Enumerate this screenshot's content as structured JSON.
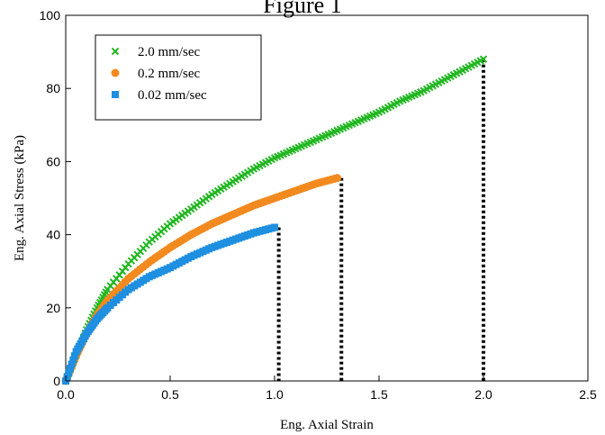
{
  "chart_data": {
    "type": "scatter",
    "title": "Figure 1",
    "xlabel": "Eng. Axial Strain",
    "ylabel": "Eng. Axial Stress (kPa)",
    "xlim": [
      0,
      2.5
    ],
    "ylim": [
      0,
      100
    ],
    "xticks": [
      0,
      0.5,
      1.0,
      1.5,
      2.0,
      2.5
    ],
    "xtick_labels": [
      "0.0",
      "0.5",
      "1.0",
      "1.5",
      "2.0",
      "2.5"
    ],
    "yticks": [
      0,
      20,
      40,
      60,
      80,
      100
    ],
    "ytick_labels": [
      "0",
      "20",
      "40",
      "60",
      "80",
      "100"
    ],
    "grid": false,
    "legend_position": "top-left",
    "series": [
      {
        "name": "2.0 mm/sec",
        "marker": "x",
        "color": "#22b722",
        "failure_strain": 2.0,
        "points": [
          [
            0,
            0
          ],
          [
            0.05,
            7
          ],
          [
            0.1,
            14
          ],
          [
            0.15,
            20
          ],
          [
            0.2,
            25
          ],
          [
            0.3,
            32
          ],
          [
            0.4,
            38
          ],
          [
            0.5,
            43
          ],
          [
            0.6,
            47
          ],
          [
            0.7,
            51
          ],
          [
            0.8,
            54.5
          ],
          [
            0.9,
            58
          ],
          [
            1.0,
            61
          ],
          [
            1.1,
            63.5
          ],
          [
            1.2,
            66
          ],
          [
            1.3,
            68.5
          ],
          [
            1.4,
            71
          ],
          [
            1.5,
            73.5
          ],
          [
            1.6,
            76.5
          ],
          [
            1.7,
            79
          ],
          [
            1.8,
            82
          ],
          [
            1.9,
            85
          ],
          [
            2.0,
            88
          ]
        ]
      },
      {
        "name": "0.2 mm/sec",
        "marker": "circle",
        "color": "#f28a1f",
        "failure_strain": 1.32,
        "points": [
          [
            0,
            0
          ],
          [
            0.05,
            7
          ],
          [
            0.1,
            13
          ],
          [
            0.15,
            18
          ],
          [
            0.2,
            22
          ],
          [
            0.3,
            28
          ],
          [
            0.4,
            32.5
          ],
          [
            0.5,
            36.5
          ],
          [
            0.6,
            40
          ],
          [
            0.7,
            43
          ],
          [
            0.8,
            45.5
          ],
          [
            0.9,
            48
          ],
          [
            1.0,
            50
          ],
          [
            1.1,
            52
          ],
          [
            1.2,
            54
          ],
          [
            1.3,
            55.5
          ]
        ]
      },
      {
        "name": "0.02 mm/sec",
        "marker": "square",
        "color": "#1f8fe0",
        "failure_strain": 1.02,
        "points": [
          [
            0,
            0
          ],
          [
            0.05,
            8
          ],
          [
            0.1,
            13
          ],
          [
            0.15,
            17
          ],
          [
            0.2,
            20
          ],
          [
            0.3,
            25
          ],
          [
            0.4,
            28.5
          ],
          [
            0.5,
            31
          ],
          [
            0.6,
            34
          ],
          [
            0.7,
            36.5
          ],
          [
            0.8,
            38.5
          ],
          [
            0.9,
            40.5
          ],
          [
            1.0,
            42
          ]
        ]
      }
    ]
  }
}
